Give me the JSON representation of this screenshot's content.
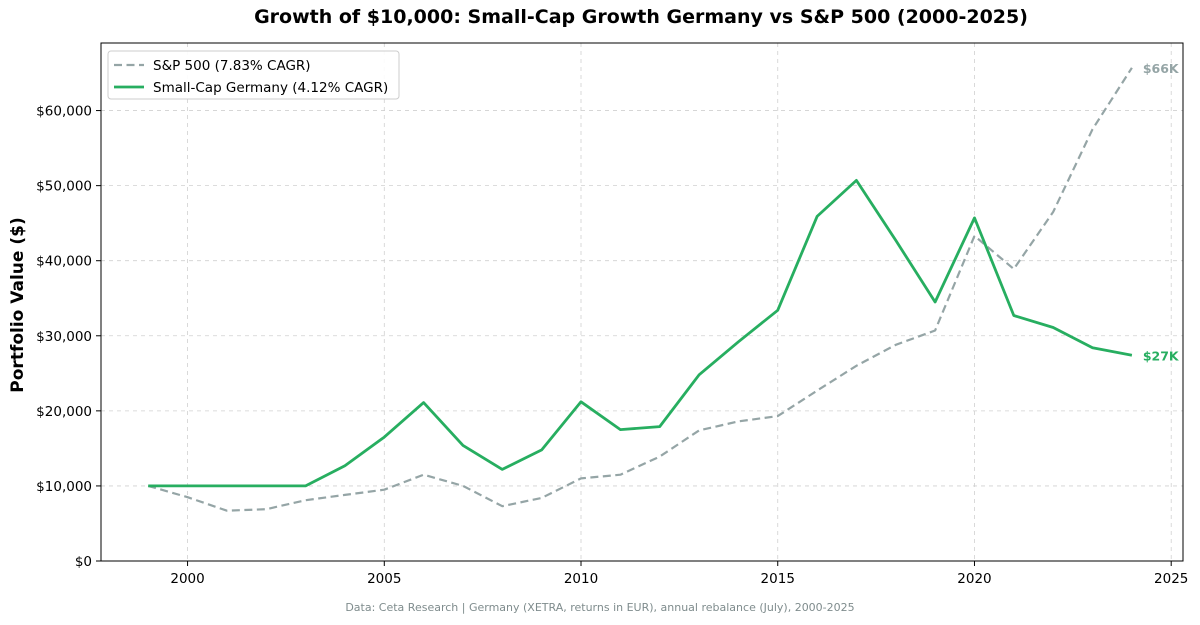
{
  "chart_data": {
    "type": "line",
    "title": "Growth of $10,000: Small-Cap Growth Germany vs S&P 500 (2000-2025)",
    "xlabel": "",
    "ylabel": "Portfolio Value ($)",
    "xlim": [
      1997.8,
      2025.3
    ],
    "ylim": [
      0,
      69000
    ],
    "x_ticks": [
      2000,
      2005,
      2010,
      2015,
      2020,
      2025
    ],
    "y_ticks": [
      0,
      10000,
      20000,
      30000,
      40000,
      50000,
      60000
    ],
    "y_tick_labels": [
      "$0",
      "$10,000",
      "$20,000",
      "$30,000",
      "$40,000",
      "$50,000",
      "$60,000"
    ],
    "grid": true,
    "legend_position": "top-left",
    "x": [
      1999,
      2000,
      2001,
      2002,
      2003,
      2004,
      2005,
      2006,
      2007,
      2008,
      2009,
      2010,
      2011,
      2012,
      2013,
      2014,
      2015,
      2016,
      2017,
      2018,
      2019,
      2020,
      2021,
      2022,
      2023,
      2024
    ],
    "series": [
      {
        "name": "S&P 500 (7.83% CAGR)",
        "color": "#95a5a6",
        "style": "dashed",
        "values": [
          10000,
          8500,
          6700,
          6900,
          8100,
          8800,
          9500,
          11500,
          10000,
          7300,
          8400,
          11000,
          11500,
          13900,
          17400,
          18600,
          19300,
          22700,
          26000,
          28800,
          30700,
          43300,
          38900,
          46500,
          57500,
          65700
        ],
        "end_label": "$66K"
      },
      {
        "name": "Small-Cap Germany (4.12% CAGR)",
        "color": "#27ae60",
        "style": "solid",
        "values": [
          10000,
          10000,
          10000,
          10000,
          10000,
          12700,
          16500,
          21100,
          15400,
          12200,
          14800,
          21200,
          17500,
          17900,
          24800,
          29200,
          33400,
          45900,
          50700,
          42700,
          34500,
          45700,
          32700,
          31100,
          28400,
          27400
        ],
        "end_label": "$27K"
      }
    ]
  },
  "footer": "Data: Ceta Research | Germany (XETRA, returns in EUR), annual rebalance (July), 2000-2025"
}
